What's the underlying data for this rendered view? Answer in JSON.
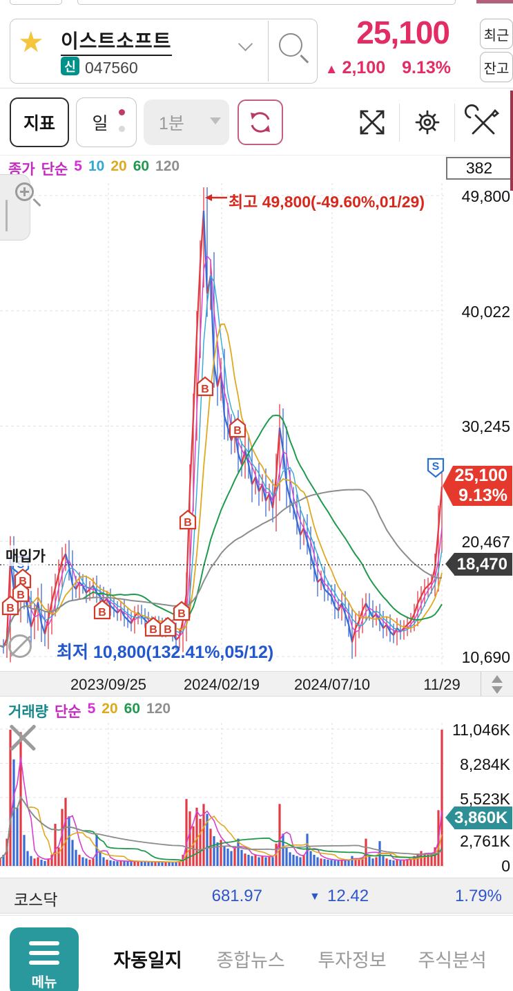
{
  "icons": {
    "star": "★",
    "up_triangle": "▲",
    "down_triangle": "▼"
  },
  "header": {
    "stock_name": "이스트소프트",
    "new_badge": "신",
    "stock_code": "047560",
    "price": "25,100",
    "change_arrow": "▲",
    "change_value": "2,100",
    "change_pct": "9.13%",
    "recent_btn": "최근",
    "balance_btn": "잔고"
  },
  "toolbar": {
    "indicator_btn": "지표",
    "daily_btn": "일",
    "minute_select": "1분"
  },
  "price_legend": {
    "parts": [
      {
        "t": "종가",
        "css": "color:#c42bc0"
      },
      {
        "t": "단순",
        "css": "color:#c42bc0"
      },
      {
        "t": "5",
        "css": "color:#d52fd5"
      },
      {
        "t": "10",
        "css": "color:#2fa8d8"
      },
      {
        "t": "20",
        "css": "color:#dfa81f"
      },
      {
        "t": "60",
        "css": "color:#1f9a4c"
      },
      {
        "t": "120",
        "css": "color:#8f8f8f"
      }
    ]
  },
  "volume_legend": {
    "parts": [
      {
        "t": "거래량",
        "css": "color:#17888a"
      },
      {
        "t": "단순",
        "css": "color:#c42bc0"
      },
      {
        "t": "5",
        "css": "color:#d52fd5"
      },
      {
        "t": "20",
        "css": "color:#dfa81f"
      },
      {
        "t": "60",
        "css": "color:#1f9a4c"
      },
      {
        "t": "120",
        "css": "color:#8f8f8f"
      }
    ]
  },
  "counter_box": "382",
  "annotations": {
    "high": "최고 49,800(-49.60%,01/29)",
    "low": "최저 10,800(132.41%,05/12)",
    "avg_label": "매입가"
  },
  "price_axis": [
    "49,800",
    "40,022",
    "30,245",
    "20,467",
    "10,690"
  ],
  "volume_axis": [
    "11,046K",
    "8,284K",
    "5,523K",
    "2,761K",
    "0"
  ],
  "price_tag": {
    "line1": "25,100",
    "line2": "9.13%"
  },
  "avg_tag": "18,470",
  "volume_tag": "3,860K",
  "date_axis": [
    "2023/09/25",
    "2024/02/19",
    "2024/07/10",
    "11/29"
  ],
  "index_bar": {
    "name": "코스닥",
    "value": "681.97",
    "arrow": "▼",
    "change": "12.42",
    "pct": "1.79%"
  },
  "nav": {
    "menu_label": "메뉴",
    "tabs": [
      {
        "label": "자동일지"
      },
      {
        "label": "종합뉴스"
      },
      {
        "label": "투자정보"
      },
      {
        "label": "주식분석"
      }
    ]
  },
  "chart_data": {
    "type": "candlestick+volume",
    "title": "이스트소프트 047560 일봉",
    "x0": 0,
    "dx": 5,
    "plot_right": 643,
    "x_ticks": [
      {
        "label": "2023/09/25",
        "x": 157
      },
      {
        "label": "2024/02/19",
        "x": 321
      },
      {
        "label": "2024/07/10",
        "x": 481
      },
      {
        "label": "11/29",
        "x": 640
      }
    ],
    "price_calib": {
      "price_hi": 49800,
      "y_hi": 283,
      "price_lo": 10690,
      "y_lo": 950
    },
    "vol_calib": {
      "v_hi": 11046,
      "y_hi": 1055,
      "y0": 1253
    },
    "price_axis_values": [
      49800,
      40022,
      30245,
      20467,
      10690
    ],
    "vol_axis_values": [
      11046,
      8284,
      5523,
      2761,
      0
    ],
    "high_point": {
      "value": 49800,
      "x": 296,
      "pct": "-49.60%",
      "date": "01/29"
    },
    "low_point": {
      "value": 10800,
      "pct": "132.41%",
      "date": "05/12"
    },
    "avg_price": 18470,
    "current": {
      "price": 25100,
      "change": 2100,
      "pct": 9.13,
      "volume_k": 3860,
      "kosdaq": 681.97,
      "kosdaq_change": -12.42,
      "kosdaq_pct": -1.79
    },
    "close": [
      11600,
      11500,
      12200,
      18900,
      16400,
      15400,
      17600,
      16100,
      14800,
      13200,
      14100,
      15300,
      13500,
      12600,
      13900,
      15300,
      16500,
      17700,
      18800,
      19400,
      18300,
      16800,
      16400,
      17000,
      16700,
      16100,
      16400,
      16700,
      16100,
      15800,
      15300,
      15600,
      15000,
      14700,
      14400,
      14700,
      14100,
      13800,
      13500,
      14100,
      14400,
      14100,
      13800,
      13500,
      13300,
      13500,
      13300,
      13000,
      13300,
      13100,
      12700,
      12100,
      12400,
      13800,
      16000,
      25000,
      31000,
      38000,
      44000,
      48500,
      41500,
      43000,
      35500,
      33600,
      34800,
      31100,
      30100,
      29000,
      29900,
      27900,
      27000,
      28200,
      27000,
      25300,
      25900,
      24700,
      25300,
      23900,
      24500,
      23300,
      25900,
      30100,
      28200,
      25300,
      24100,
      23300,
      22200,
      21000,
      21600,
      20500,
      19300,
      18200,
      17000,
      17300,
      16400,
      16100,
      15800,
      14900,
      14600,
      15200,
      14300,
      13400,
      11900,
      13100,
      13700,
      14600,
      15200,
      14600,
      14000,
      14300,
      13700,
      13100,
      13400,
      12800,
      12500,
      13100,
      12800,
      13100,
      13400,
      13700,
      14300,
      15200,
      15800,
      16400,
      16700,
      17000,
      18200,
      21500,
      25100
    ],
    "volume_k": [
      600,
      900,
      2200,
      11000,
      8600,
      4700,
      10800,
      2500,
      1200,
      800,
      600,
      700,
      500,
      400,
      600,
      900,
      3400,
      1500,
      4600,
      5500,
      4000,
      2100,
      1300,
      900,
      700,
      600,
      500,
      600,
      2500,
      1100,
      700,
      500,
      450,
      400,
      380,
      420,
      380,
      350,
      330,
      400,
      380,
      350,
      330,
      310,
      350,
      330,
      310,
      300,
      330,
      310,
      300,
      350,
      400,
      900,
      5400,
      4400,
      3200,
      4700,
      3800,
      5000,
      4200,
      3000,
      2400,
      1900,
      2100,
      1600,
      1400,
      1200,
      1500,
      2200,
      1300,
      1000,
      900,
      800,
      900,
      700,
      800,
      700,
      800,
      700,
      1800,
      5000,
      2600,
      1500,
      1100,
      900,
      800,
      700,
      900,
      2600,
      1200,
      900,
      700,
      600,
      550,
      500,
      480,
      450,
      420,
      500,
      450,
      500,
      800,
      600,
      500,
      700,
      2200,
      900,
      600,
      700,
      2000,
      800,
      600,
      500,
      450,
      500,
      450,
      500,
      550,
      600,
      800,
      1000,
      1200,
      1000,
      900,
      1000,
      1500,
      4500,
      11000
    ],
    "candle_up_color": "#e23b45",
    "candle_down_color": "#3a6ad4",
    "price_ma": [
      {
        "w": 3,
        "color": "#d63fd0",
        "lw": 1.4
      },
      {
        "w": 5,
        "color": "#2fa8d8",
        "lw": 1.4
      },
      {
        "w": 9,
        "color": "#dfa81f",
        "lw": 1.8
      },
      {
        "w": 25,
        "color": "#1f9a4c",
        "lw": 2
      },
      {
        "w": 51,
        "color": "#8c8c8c",
        "lw": 2
      }
    ],
    "vol_ma": [
      {
        "w": 4,
        "color": "#d63fd0",
        "lw": 1.6
      },
      {
        "w": 9,
        "color": "#dfa81f",
        "lw": 1.6
      },
      {
        "w": 25,
        "color": "#1f9a4c",
        "lw": 1.8
      },
      {
        "w": 51,
        "color": "#8c8c8c",
        "lw": 1.8
      }
    ],
    "markers": [
      {
        "t": "S",
        "x": 30,
        "y": 818
      },
      {
        "t": "B",
        "x": 33,
        "y": 838
      },
      {
        "t": "B",
        "x": 30,
        "y": 858
      },
      {
        "t": "B",
        "x": 15,
        "y": 877
      },
      {
        "t": "B",
        "x": 148,
        "y": 883
      },
      {
        "t": "B",
        "x": 222,
        "y": 908
      },
      {
        "t": "B",
        "x": 243,
        "y": 908
      },
      {
        "t": "B",
        "x": 263,
        "y": 885
      },
      {
        "t": "B",
        "x": 272,
        "y": 753
      },
      {
        "t": "B",
        "x": 297,
        "y": 560
      },
      {
        "t": "B",
        "x": 344,
        "y": 620
      },
      {
        "t": "S",
        "x": 631,
        "y": 676
      }
    ],
    "marker_colors": {
      "B": "#d43a2a",
      "S": "#2b6fd4"
    }
  }
}
